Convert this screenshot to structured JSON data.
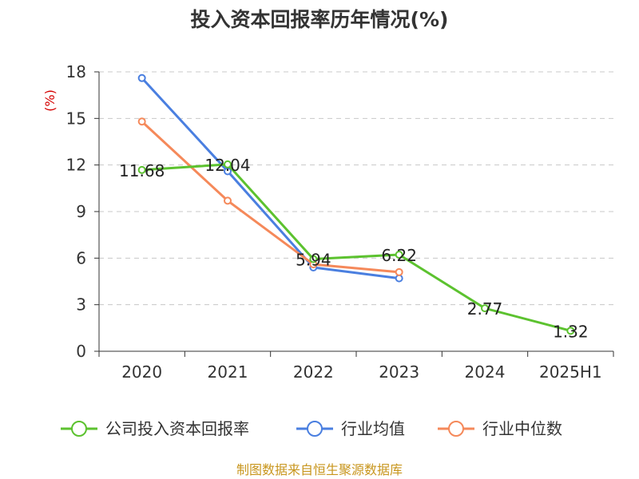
{
  "chart_data": {
    "type": "line",
    "title": "投入资本回报率历年情况(%)",
    "ylabel": "(%)",
    "xlabel": "",
    "categories": [
      "2020",
      "2021",
      "2022",
      "2023",
      "2024",
      "2025H1"
    ],
    "ylim": [
      0,
      18
    ],
    "yticks": [
      0,
      3,
      6,
      9,
      12,
      15,
      18
    ],
    "grid": true,
    "legend_position": "bottom",
    "series": [
      {
        "key": "company",
        "name": "公司投入资本回报率",
        "color": "#5cc22f",
        "values": [
          11.68,
          12.04,
          5.94,
          6.22,
          2.77,
          1.32
        ],
        "data_labels": [
          "11.68",
          "12.04",
          "5.94",
          "6.22",
          "2.77",
          "1.32"
        ]
      },
      {
        "key": "industry-avg",
        "name": "行业均值",
        "color": "#4a7fe0",
        "values": [
          17.6,
          11.6,
          5.4,
          4.7,
          null,
          null
        ]
      },
      {
        "key": "industry-median",
        "name": "行业中位数",
        "color": "#f5895a",
        "values": [
          14.8,
          9.7,
          5.6,
          5.1,
          null,
          null
        ]
      }
    ]
  },
  "source_text": "制图数据来自恒生聚源数据库"
}
